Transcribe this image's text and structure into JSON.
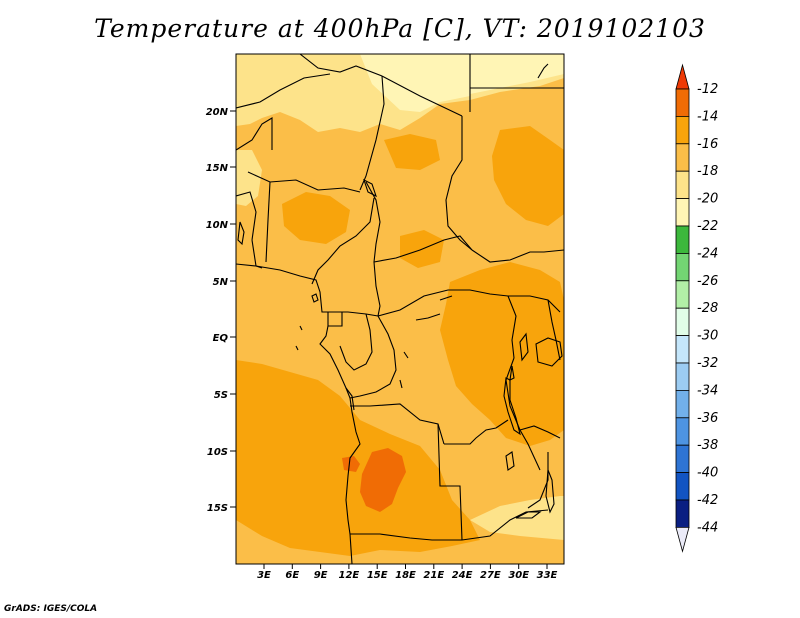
{
  "title": "Temperature at 400hPa [C], VT: 2019102103",
  "footer": "GrADS: IGES/COLA",
  "map": {
    "lat_labels": [
      "20N",
      "15N",
      "10N",
      "5N",
      "EQ",
      "5S",
      "10S",
      "15S"
    ],
    "lon_labels": [
      "3E",
      "6E",
      "9E",
      "12E",
      "15E",
      "18E",
      "21E",
      "24E",
      "27E",
      "30E",
      "33E"
    ],
    "colors": {
      "minus_22_to_20": "#fff5b5",
      "minus_20_to_18": "#fde38a",
      "minus_18_to_16": "#fbbe48",
      "minus_16_to_14": "#f8a40c",
      "minus_14_to_12": "#f06c05"
    },
    "boundary_color": "#000000"
  },
  "colorbar": {
    "labels": [
      "-12",
      "-14",
      "-16",
      "-18",
      "-20",
      "-22",
      "-24",
      "-26",
      "-28",
      "-30",
      "-32",
      "-34",
      "-36",
      "-38",
      "-40",
      "-42",
      "-44"
    ],
    "colors": [
      "#ee3a06",
      "#f06c05",
      "#f8a40c",
      "#fbbe48",
      "#fde38a",
      "#fff5b5",
      "#3cb83c",
      "#73d573",
      "#b2efa7",
      "#e1fde8",
      "#c4e6fb",
      "#9cccf2",
      "#72b0ea",
      "#4e94e2",
      "#2e74d4",
      "#1254c2",
      "#0a1f82",
      "#ebebf8"
    ]
  }
}
